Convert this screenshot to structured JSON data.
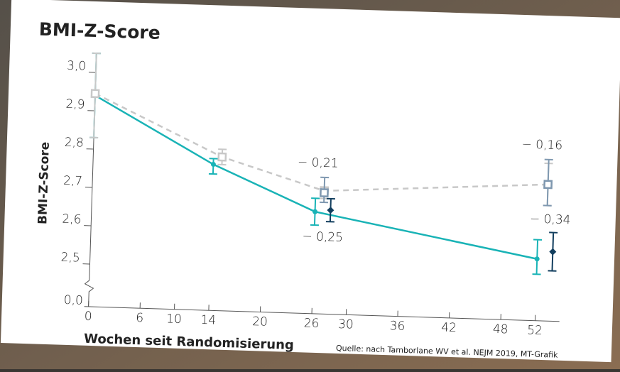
{
  "chart_data": {
    "type": "line",
    "title": "BMI-Z-Score",
    "x_label": "Wochen seit Randomisierung",
    "y_label": "BMI-Z-Score",
    "source": "Quelle: nach Tamborlane WV et al. NEJM 2019, MT-Grafik",
    "xlim": [
      0,
      54
    ],
    "xticks": [
      0,
      6,
      10,
      14,
      20,
      26,
      30,
      36,
      42,
      48,
      52
    ],
    "ylim": [
      2.4,
      3.05
    ],
    "yticks": [
      {
        "value": 2.5,
        "label": "2,5"
      },
      {
        "value": 2.6,
        "label": "2,6"
      },
      {
        "value": 2.7,
        "label": "2,7"
      },
      {
        "value": 2.8,
        "label": "2,8"
      },
      {
        "value": 2.9,
        "label": "2,9"
      },
      {
        "value": 3.0,
        "label": "3,0"
      }
    ],
    "axis_break_tick": {
      "value": 0,
      "label": "0,0"
    },
    "series": [
      {
        "style": "line",
        "marker": "dot",
        "color": "#19b3b6",
        "x": [
          0,
          14,
          26,
          52
        ],
        "values": [
          2.94,
          2.77,
          2.655,
          2.55
        ],
        "low": [
          2.83,
          2.745,
          2.62,
          2.51
        ],
        "high": [
          3.05,
          2.785,
          2.69,
          2.6
        ]
      },
      {
        "style": "dashed",
        "marker": "square",
        "color": "#c8c8c8",
        "x": [
          0,
          15,
          27,
          53
        ],
        "values": [
          2.945,
          2.79,
          2.71,
          2.745
        ],
        "low": [
          2.83,
          2.77,
          2.69,
          2.69
        ],
        "high": [
          3.05,
          2.81,
          2.72,
          2.8
        ]
      },
      {
        "style": "points",
        "marker": "square",
        "color": "#7f98b0",
        "x": [
          27,
          53
        ],
        "values": [
          2.705,
          2.745
        ],
        "low": [
          2.68,
          2.69
        ],
        "high": [
          2.745,
          2.81
        ],
        "point_labels": [
          "− 0,21",
          "− 0,16"
        ]
      },
      {
        "style": "points",
        "marker": "diamond",
        "color": "#123e5e",
        "x": [
          27.8,
          53.8
        ],
        "values": [
          2.66,
          2.57
        ],
        "low": [
          2.63,
          2.52
        ],
        "high": [
          2.69,
          2.62
        ],
        "point_labels": [
          "− 0,25",
          "− 0,34"
        ]
      }
    ]
  }
}
